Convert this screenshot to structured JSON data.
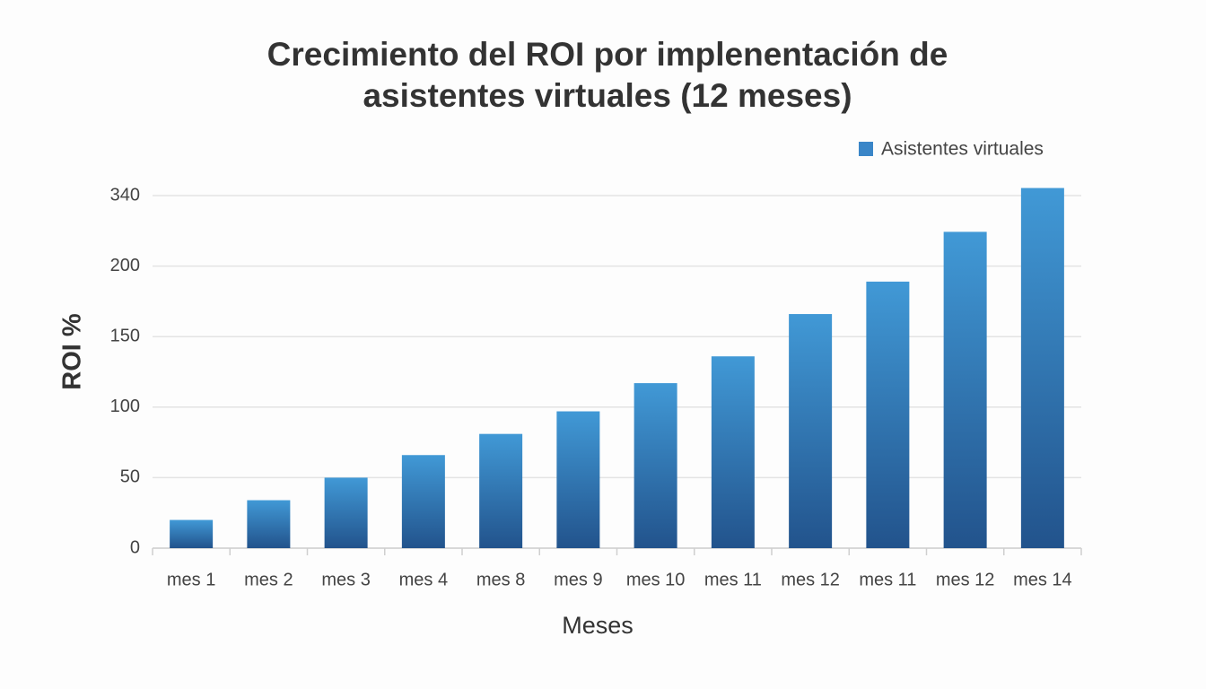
{
  "chart_data": {
    "type": "bar",
    "title": "Crecimiento del ROI por implenentación de asistentes virtuales (12 meses)",
    "x_label": "Meses",
    "y_label": "ROI %",
    "categories": [
      "mes 1",
      "mes 2",
      "mes 3",
      "mes 4",
      "mes 8",
      "mes 9",
      "mes 10",
      "mes 11",
      "mes 12",
      "mes 11",
      "mes 12",
      "mes 14"
    ],
    "series": [
      {
        "name": "Asistentes virtuales",
        "color": "#3a86c8",
        "values": [
          20,
          34,
          50,
          66,
          81,
          97,
          117,
          136,
          166,
          189,
          268,
          355
        ]
      }
    ],
    "ylim": [
      0,
      340
    ],
    "yticks": [
      0,
      50,
      100,
      150,
      200,
      340
    ],
    "grid": true,
    "legend": "top-right"
  }
}
